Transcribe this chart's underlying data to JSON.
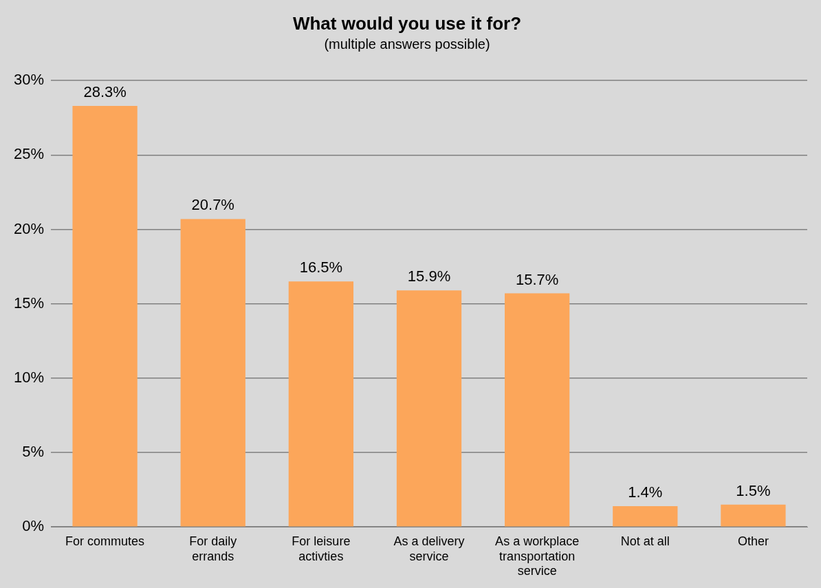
{
  "chart_data": {
    "type": "bar",
    "title": "What would you use it for?",
    "subtitle": "(multiple answers possible)",
    "categories": [
      "For commutes",
      "For daily errands",
      "For leisure activties",
      "As a delivery service",
      "As a workplace transportation service",
      "Not at all",
      "Other"
    ],
    "values": [
      28.3,
      20.7,
      16.5,
      15.9,
      15.7,
      1.4,
      1.5
    ],
    "value_labels": [
      "28.3%",
      "20.7%",
      "16.5%",
      "15.9%",
      "15.7%",
      "1.4%",
      "1.5%"
    ],
    "color": "#fca65a",
    "ylim": [
      0,
      30
    ],
    "yticks": [
      {
        "value": 0,
        "label": "0%"
      },
      {
        "value": 5,
        "label": "5%"
      },
      {
        "value": 10,
        "label": "10%"
      },
      {
        "value": 15,
        "label": "15%"
      },
      {
        "value": 20,
        "label": "20%"
      },
      {
        "value": 25,
        "label": "25%"
      },
      {
        "value": 30,
        "label": "30%"
      }
    ],
    "grid": "y",
    "legend": false
  }
}
